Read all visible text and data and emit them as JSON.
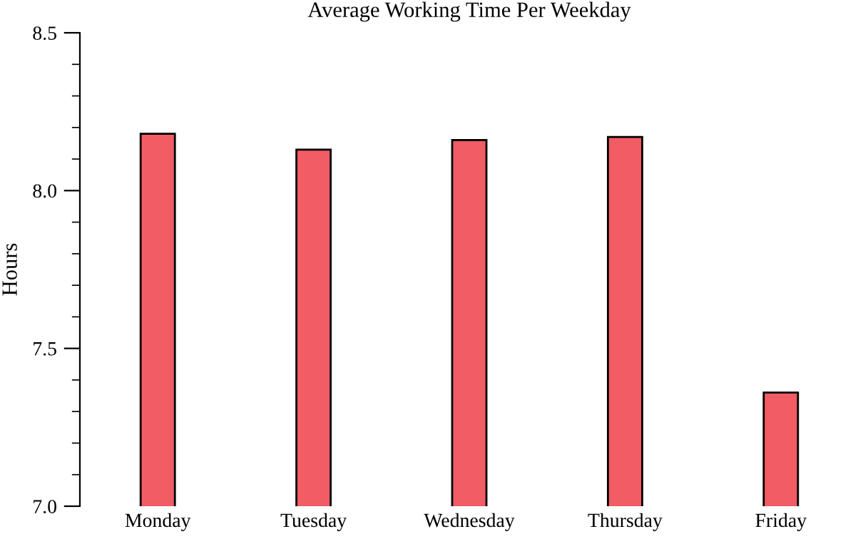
{
  "chart_data": {
    "type": "bar",
    "title": "Average Working Time Per Weekday",
    "ylabel": "Hours",
    "categories": [
      "Monday",
      "Tuesday",
      "Wednesday",
      "Thursday",
      "Friday"
    ],
    "values": [
      8.18,
      8.13,
      8.16,
      8.17,
      7.36
    ],
    "color": "#f25c64",
    "ylim": [
      7.0,
      8.5
    ],
    "yticks": [
      {
        "value": 7.0,
        "label": "7.0"
      },
      {
        "value": 7.1,
        "label": null
      },
      {
        "value": 7.2,
        "label": null
      },
      {
        "value": 7.3,
        "label": null
      },
      {
        "value": 7.4,
        "label": null
      },
      {
        "value": 7.5,
        "label": "7.5"
      },
      {
        "value": 7.6,
        "label": null
      },
      {
        "value": 7.7,
        "label": null
      },
      {
        "value": 7.8,
        "label": null
      },
      {
        "value": 7.9,
        "label": null
      },
      {
        "value": 8.0,
        "label": "8.0"
      },
      {
        "value": 8.1,
        "label": null
      },
      {
        "value": 8.2,
        "label": null
      },
      {
        "value": 8.3,
        "label": null
      },
      {
        "value": 8.4,
        "label": null
      },
      {
        "value": 8.5,
        "label": "8.5"
      }
    ],
    "grid": false
  }
}
